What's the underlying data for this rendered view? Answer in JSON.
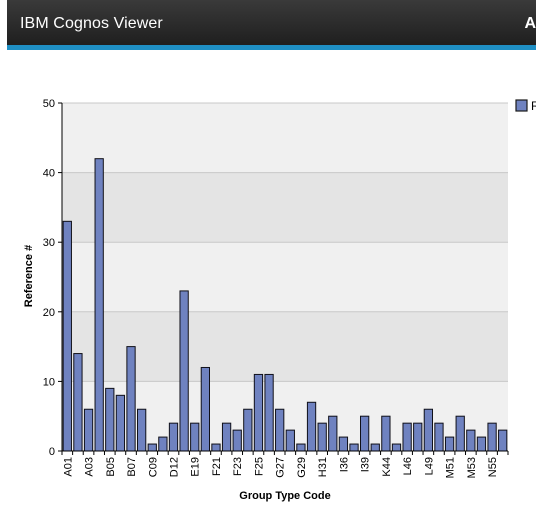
{
  "header": {
    "title": "IBM Cognos Viewer",
    "right_text": "A"
  },
  "chart_data": {
    "type": "bar",
    "xlabel": "Group Type Code",
    "ylabel": "Reference #",
    "ylim": [
      0,
      50
    ],
    "yticks": [
      0,
      10,
      20,
      30,
      40,
      50
    ],
    "grid": true,
    "legend_position": "right",
    "legend_entries": [
      "R"
    ],
    "tick_labels_shown": [
      "A01",
      "A03",
      "B05",
      "B07",
      "C09",
      "D12",
      "E19",
      "F21",
      "F23",
      "F25",
      "G27",
      "G29",
      "H31",
      "I36",
      "I39",
      "K44",
      "L46",
      "L49",
      "M51",
      "M53",
      "N55"
    ],
    "series": [
      {
        "color": "#6f82c0",
        "values": [
          33,
          14,
          6,
          42,
          9,
          8,
          15,
          6,
          1,
          2,
          4,
          23,
          4,
          12,
          1,
          4,
          3,
          6,
          11,
          11,
          6,
          3,
          1,
          7,
          4,
          5,
          2,
          1,
          5,
          1,
          5,
          1,
          4,
          4,
          6,
          4,
          2,
          5,
          3,
          2,
          4,
          3
        ]
      }
    ]
  }
}
